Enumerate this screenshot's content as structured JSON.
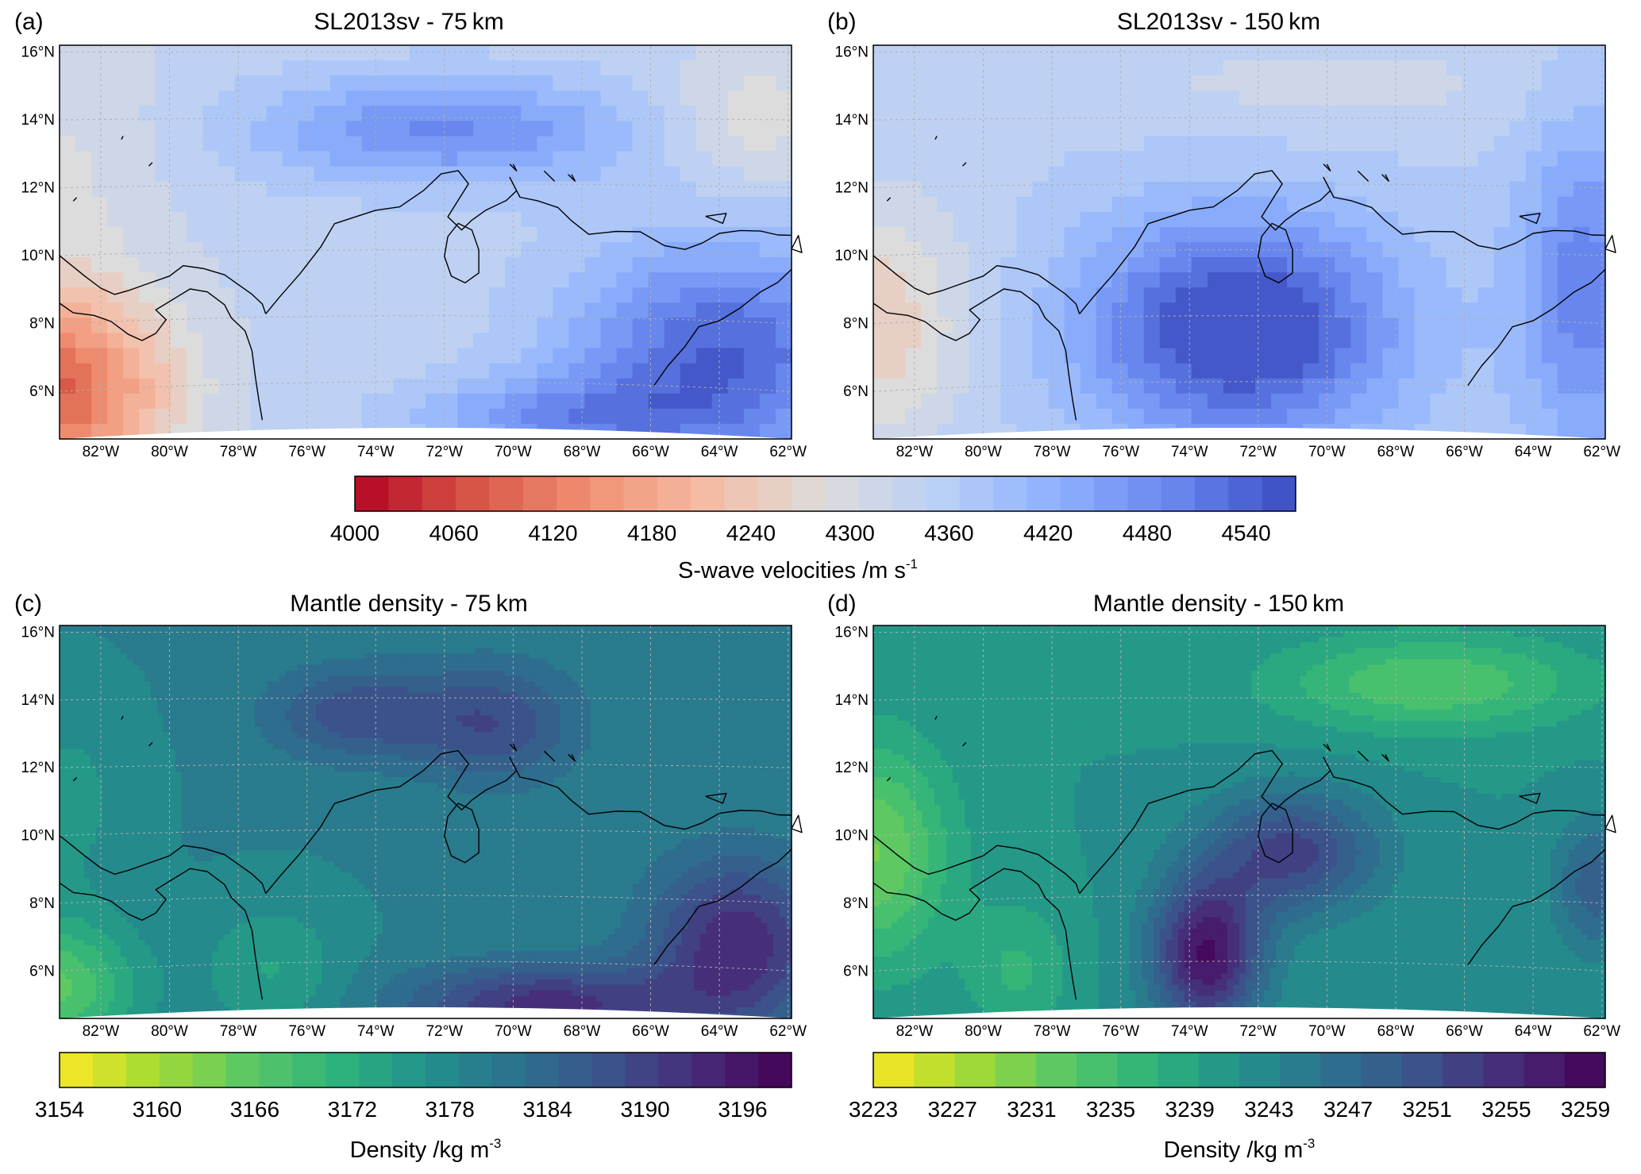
{
  "panels": [
    {
      "id": "a",
      "letter": "(a)",
      "title": "SL2013sv - 75 km",
      "field": "vs75"
    },
    {
      "id": "b",
      "letter": "(b)",
      "title": "SL2013sv - 150 km",
      "field": "vs150"
    },
    {
      "id": "c",
      "letter": "(c)",
      "title": "Mantle density - 75 km",
      "field": "rho75"
    },
    {
      "id": "d",
      "letter": "(d)",
      "title": "Mantle density - 150 km",
      "field": "rho150"
    }
  ],
  "lat_labels": [
    "6°N",
    "8°N",
    "10°N",
    "12°N",
    "14°N",
    "16°N"
  ],
  "lon_labels": [
    "82°W",
    "80°W",
    "78°W",
    "76°W",
    "74°W",
    "72°W",
    "70°W",
    "68°W",
    "66°W",
    "64°W",
    "62°W"
  ],
  "colorbars": {
    "velocity": {
      "ticks": [
        "4000",
        "4060",
        "4120",
        "4180",
        "4240",
        "4300",
        "4360",
        "4420",
        "4480",
        "4540"
      ],
      "label_main": "S-wave velocities /m s",
      "label_exp": "-1",
      "colormap": "coolwarm (reversed)",
      "range": [
        4000,
        4570
      ]
    },
    "density_75": {
      "ticks": [
        "3154",
        "3160",
        "3166",
        "3172",
        "3178",
        "3184",
        "3190",
        "3196"
      ],
      "label_main": "Density /kg m",
      "label_exp": "-3",
      "colormap": "viridis (reversed)",
      "range": [
        3154,
        3199
      ]
    },
    "density_150": {
      "ticks": [
        "3223",
        "3227",
        "3231",
        "3235",
        "3239",
        "3243",
        "3247",
        "3251",
        "3255",
        "3259"
      ],
      "label_main": "Density /kg m",
      "label_exp": "-3",
      "colormap": "viridis (reversed)",
      "range": [
        3223,
        3260
      ]
    }
  },
  "colors": {
    "coastline": "#000000",
    "gridline": "#b0b0b0",
    "vel_low": "#b40426",
    "vel_mid": "#dddcdc",
    "vel_high": "#3b4cc0",
    "dens_low": "#fde725",
    "dens_high": "#440154"
  }
}
